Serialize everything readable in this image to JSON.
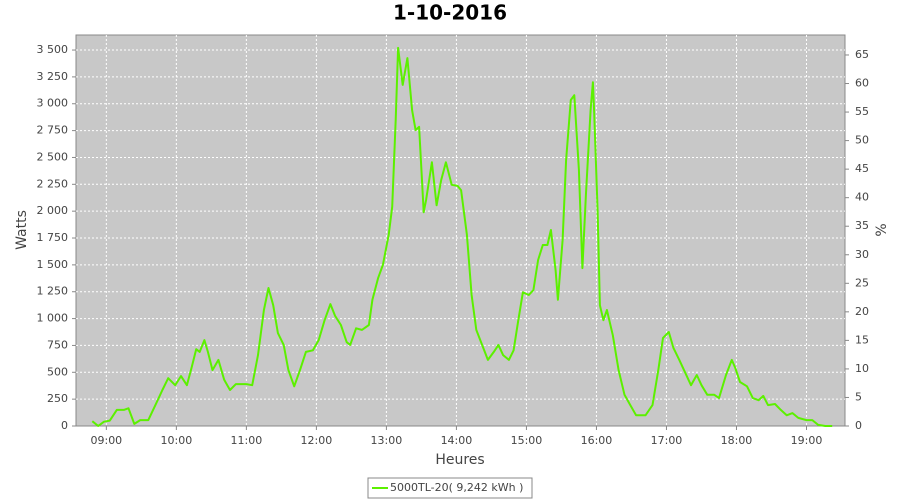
{
  "chart_data": {
    "type": "line",
    "title": "1-10-2016",
    "xlabel": "Heures",
    "ylabel": "Watts",
    "y2label": "%",
    "x": [
      "08:48",
      "08:53",
      "08:58",
      "09:03",
      "09:09",
      "09:15",
      "09:19",
      "09:24",
      "09:29",
      "09:36",
      "09:42",
      "09:48",
      "09:53",
      "09:59",
      "10:04",
      "10:09",
      "10:13",
      "10:17",
      "10:20",
      "10:24",
      "10:27",
      "10:31",
      "10:36",
      "10:41",
      "10:46",
      "10:51",
      "11:00",
      "11:05",
      "11:10",
      "11:15",
      "11:19",
      "11:23",
      "11:27",
      "11:32",
      "11:36",
      "11:41",
      "11:46",
      "11:51",
      "11:57",
      "12:02",
      "12:07",
      "12:12",
      "12:16",
      "12:21",
      "12:26",
      "12:29",
      "12:34",
      "12:39",
      "12:45",
      "12:48",
      "12:53",
      "12:57",
      "13:02",
      "13:05",
      "13:08",
      "13:10",
      "13:14",
      "13:18",
      "13:22",
      "13:25",
      "13:28",
      "13:32",
      "13:34",
      "13:39",
      "13:43",
      "13:47",
      "13:51",
      "13:56",
      "14:01",
      "14:04",
      "14:09",
      "14:13",
      "14:17",
      "14:22",
      "14:27",
      "14:32",
      "14:36",
      "14:40",
      "14:45",
      "14:49",
      "14:53",
      "14:57",
      "15:02",
      "15:06",
      "15:10",
      "15:14",
      "15:18",
      "15:21",
      "15:25",
      "15:27",
      "15:31",
      "15:34",
      "15:38",
      "15:41",
      "15:45",
      "15:48",
      "15:51",
      "15:55",
      "15:57",
      "15:58",
      "16:01",
      "16:03",
      "16:06",
      "16:09",
      "16:14",
      "16:19",
      "16:24",
      "16:29",
      "16:34",
      "16:42",
      "16:48",
      "16:53",
      "16:57",
      "17:02",
      "17:06",
      "17:11",
      "17:15",
      "17:21",
      "17:26",
      "17:30",
      "17:35",
      "17:41",
      "17:45",
      "17:51",
      "17:56",
      "17:59",
      "18:03",
      "18:09",
      "18:14",
      "18:19",
      "18:23",
      "18:27",
      "18:33",
      "18:38",
      "18:43",
      "18:48",
      "18:53",
      "19:00",
      "19:05",
      "19:10",
      "19:16",
      "19:22"
    ],
    "series": [
      {
        "name": "5000TL-20( 9,242 kWh )",
        "color": "#5cf000",
        "values": [
          45,
          0,
          40,
          50,
          150,
          150,
          165,
          20,
          55,
          55,
          195,
          335,
          445,
          380,
          465,
          380,
          540,
          715,
          690,
          800,
          690,
          520,
          615,
          430,
          335,
          390,
          390,
          380,
          660,
          1080,
          1285,
          1125,
          865,
          755,
          520,
          370,
          520,
          690,
          705,
          800,
          985,
          1135,
          1025,
          940,
          780,
          755,
          910,
          895,
          940,
          1175,
          1380,
          1500,
          1780,
          2040,
          2850,
          3520,
          3175,
          3425,
          2940,
          2755,
          2785,
          1990,
          2105,
          2455,
          2055,
          2290,
          2455,
          2245,
          2235,
          2195,
          1780,
          1220,
          895,
          755,
          615,
          690,
          755,
          660,
          615,
          705,
          985,
          1245,
          1220,
          1265,
          1545,
          1685,
          1685,
          1825,
          1450,
          1175,
          1730,
          2475,
          3035,
          3080,
          2385,
          1470,
          2150,
          2940,
          3200,
          2940,
          2010,
          1125,
          985,
          1080,
          845,
          520,
          290,
          195,
          100,
          100,
          195,
          520,
          820,
          875,
          725,
          615,
          520,
          380,
          475,
          380,
          290,
          290,
          260,
          475,
          615,
          540,
          410,
          370,
          260,
          240,
          280,
          195,
          205,
          150,
          100,
          120,
          75,
          55,
          55,
          10,
          0,
          0
        ]
      }
    ],
    "xlim": [
      "08:34",
      "19:33"
    ],
    "xticks": [
      "09:00",
      "10:00",
      "11:00",
      "12:00",
      "13:00",
      "14:00",
      "15:00",
      "16:00",
      "17:00",
      "18:00",
      "19:00"
    ],
    "ylim": [
      0,
      3640
    ],
    "yticks": [
      0,
      250,
      500,
      750,
      {
        "value": 1000,
        "label": "1 000"
      },
      {
        "value": 1250,
        "label": "1 250"
      },
      {
        "value": 1500,
        "label": "1 500"
      },
      {
        "value": 1750,
        "label": "1 750"
      },
      {
        "value": 2000,
        "label": "2 000"
      },
      {
        "value": 2250,
        "label": "2 250"
      },
      {
        "value": 2500,
        "label": "2 500"
      },
      {
        "value": 2750,
        "label": "2 750"
      },
      {
        "value": 3000,
        "label": "3 000"
      },
      {
        "value": 3250,
        "label": "3 250"
      },
      {
        "value": 3500,
        "label": "3 500"
      }
    ],
    "y2lim": [
      0,
      68.5
    ],
    "y2ticks": [
      0,
      5,
      10,
      15,
      20,
      25,
      30,
      35,
      40,
      45,
      50,
      55,
      60,
      65
    ],
    "grid": true
  }
}
